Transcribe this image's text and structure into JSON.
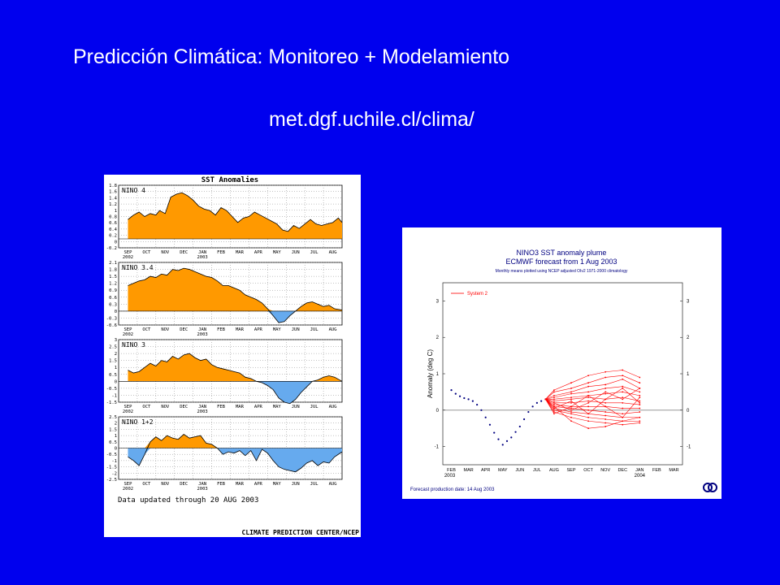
{
  "slide": {
    "title": "Predicción Climática: Monitoreo + Modelamiento",
    "url": "met.dgf.uchile.cl/clima/"
  },
  "colors": {
    "background": "#0000ee",
    "positive_fill": "#ff9900",
    "negative_fill": "#66aaee",
    "plume": "#ff0000",
    "observed": "#000080"
  },
  "left_figure": {
    "title": "SST Anomalies",
    "months": [
      "SEP",
      "OCT",
      "NOV",
      "DEC",
      "JAN",
      "FEB",
      "MAR",
      "APR",
      "MAY",
      "JUN",
      "JUL",
      "AUG"
    ],
    "year_start": "2002",
    "year_mid": "2003",
    "footer_note": "Data updated through 20 AUG 2003",
    "credit": "CLIMATE PREDICTION CENTER/NCEP"
  },
  "right_figure": {
    "title": "NINO3 SST anomaly plume",
    "subtitle": "ECMWF forecast from  1 Aug 2003",
    "note": "Monthly means plotted using NCEP adjusted OIv2 1971-2000 climatology",
    "ylabel": "Anomaly (deg C)",
    "legend": "System 2",
    "months": [
      "FEB",
      "MAR",
      "APR",
      "MAY",
      "JUN",
      "JUL",
      "AUG",
      "SEP",
      "OCT",
      "NOV",
      "DEC",
      "JAN",
      "FEB",
      "MAR"
    ],
    "year_start": "2003",
    "year_end": "2004",
    "production_date": "Forecast production date: 14 Aug 2003",
    "logo": "ecmwf-logo"
  },
  "chart_data": [
    {
      "type": "area",
      "name": "NINO 4",
      "x": [
        0,
        0.3,
        0.6,
        0.9,
        1.2,
        1.5,
        1.7,
        2.0,
        2.3,
        2.6,
        2.9,
        3.2,
        3.5,
        3.8,
        4.1,
        4.4,
        4.7,
        5.0,
        5.3,
        5.6,
        5.9,
        6.2,
        6.5,
        6.8,
        7.1,
        7.4,
        7.7,
        8.0,
        8.3,
        8.6,
        8.9,
        9.2,
        9.5,
        9.8,
        10.1,
        10.4,
        10.7,
        11.0,
        11.3,
        11.5
      ],
      "values": [
        0.65,
        0.8,
        0.9,
        0.75,
        0.85,
        0.8,
        0.95,
        0.85,
        1.4,
        1.5,
        1.55,
        1.45,
        1.3,
        1.1,
        1.0,
        0.95,
        0.8,
        1.05,
        0.95,
        0.75,
        0.55,
        0.7,
        0.75,
        0.9,
        0.8,
        0.7,
        0.6,
        0.5,
        0.3,
        0.25,
        0.45,
        0.35,
        0.5,
        0.65,
        0.5,
        0.45,
        0.5,
        0.55,
        0.7,
        0.55
      ],
      "ylim": [
        -0.3,
        1.8
      ],
      "yticks": [
        "1.8",
        "1.6",
        "1.4",
        "1.2",
        "1",
        "0.8",
        "0.6",
        "0.4",
        "0.2",
        "0",
        "-0.2"
      ]
    },
    {
      "type": "area",
      "name": "NINO 3.4",
      "x": [
        0,
        0.3,
        0.6,
        0.9,
        1.2,
        1.5,
        1.8,
        2.1,
        2.4,
        2.7,
        3.0,
        3.3,
        3.6,
        3.9,
        4.2,
        4.5,
        4.8,
        5.1,
        5.4,
        5.7,
        6.0,
        6.3,
        6.6,
        6.9,
        7.2,
        7.5,
        7.8,
        8.1,
        8.4,
        8.7,
        9.0,
        9.3,
        9.6,
        9.9,
        10.2,
        10.5,
        10.8,
        11.1,
        11.5
      ],
      "values": [
        1.1,
        1.2,
        1.3,
        1.35,
        1.5,
        1.45,
        1.6,
        1.55,
        1.8,
        1.75,
        1.85,
        1.8,
        1.7,
        1.6,
        1.5,
        1.45,
        1.3,
        1.1,
        1.1,
        1.0,
        0.9,
        0.7,
        0.6,
        0.5,
        0.35,
        0.1,
        -0.2,
        -0.5,
        -0.45,
        -0.2,
        0.0,
        0.2,
        0.35,
        0.4,
        0.3,
        0.2,
        0.25,
        0.1,
        0.05
      ],
      "ylim": [
        -0.6,
        2.1
      ],
      "yticks": [
        "2.1",
        "1.8",
        "1.5",
        "1.2",
        "0.9",
        "0.6",
        "0.3",
        "0",
        "-0.3",
        "-0.6"
      ]
    },
    {
      "type": "area",
      "name": "NINO 3",
      "x": [
        0,
        0.3,
        0.6,
        0.9,
        1.2,
        1.5,
        1.8,
        2.1,
        2.4,
        2.7,
        3.0,
        3.3,
        3.6,
        3.9,
        4.2,
        4.5,
        4.8,
        5.1,
        5.4,
        5.7,
        6.0,
        6.3,
        6.6,
        6.9,
        7.2,
        7.5,
        7.8,
        8.1,
        8.4,
        8.7,
        9.0,
        9.3,
        9.6,
        9.9,
        10.2,
        10.5,
        10.8,
        11.1,
        11.5
      ],
      "values": [
        0.8,
        0.6,
        0.7,
        1.0,
        1.3,
        1.1,
        1.5,
        1.4,
        1.8,
        1.6,
        1.9,
        2.0,
        1.7,
        1.5,
        1.6,
        1.2,
        1.0,
        0.9,
        0.8,
        0.7,
        0.6,
        0.3,
        0.2,
        0.0,
        -0.1,
        -0.3,
        -0.6,
        -1.2,
        -1.5,
        -1.6,
        -1.3,
        -0.8,
        -0.4,
        0.0,
        0.1,
        0.3,
        0.4,
        0.3,
        0.0
      ],
      "ylim": [
        -1.5,
        3.0
      ],
      "yticks": [
        "3",
        "2.5",
        "2",
        "1.5",
        "1",
        "0.5",
        "0",
        "-0.5",
        "-1",
        "-1.5"
      ]
    },
    {
      "type": "area",
      "name": "NINO 1+2",
      "x": [
        0,
        0.3,
        0.6,
        0.9,
        1.2,
        1.5,
        1.8,
        2.1,
        2.4,
        2.7,
        3.0,
        3.3,
        3.6,
        3.9,
        4.2,
        4.5,
        4.8,
        5.1,
        5.4,
        5.7,
        6.0,
        6.3,
        6.6,
        6.9,
        7.2,
        7.5,
        7.8,
        8.1,
        8.4,
        8.7,
        9.0,
        9.3,
        9.6,
        9.9,
        10.2,
        10.5,
        10.8,
        11.1,
        11.5
      ],
      "values": [
        -0.7,
        -1.0,
        -1.4,
        -0.5,
        0.5,
        0.9,
        0.6,
        1.0,
        0.8,
        0.7,
        1.1,
        0.8,
        0.9,
        1.0,
        0.4,
        0.3,
        0.0,
        -0.5,
        -0.3,
        -0.4,
        -0.2,
        -0.6,
        -0.2,
        -1.0,
        -0.1,
        -0.4,
        -1.0,
        -1.5,
        -1.7,
        -1.8,
        -1.9,
        -1.6,
        -1.2,
        -1.0,
        -1.4,
        -1.1,
        -1.2,
        -0.7,
        -0.3
      ],
      "ylim": [
        -2.5,
        2.5
      ],
      "yticks": [
        "2.5",
        "2",
        "1.5",
        "1",
        "0.5",
        "0",
        "-0.5",
        "-1",
        "-1.5",
        "-2",
        "-2.5"
      ]
    },
    {
      "type": "line",
      "name": "NINO3 SST anomaly plume",
      "x_months": [
        "FEB",
        "MAR",
        "APR",
        "MAY",
        "JUN",
        "JUL",
        "AUG",
        "SEP",
        "OCT",
        "NOV",
        "DEC",
        "JAN",
        "FEB",
        "MAR"
      ],
      "ylim": [
        -1.5,
        3.5
      ],
      "yticks": [
        3,
        2,
        1,
        0,
        -1
      ],
      "observed": {
        "x": [
          0,
          0.25,
          0.5,
          0.75,
          1.0,
          1.25,
          1.5,
          1.75,
          2.0,
          2.25,
          2.5,
          2.75,
          3.0,
          3.25,
          3.5,
          3.75,
          4.0,
          4.25,
          4.5,
          4.75,
          5.0,
          5.25,
          5.5
        ],
        "y": [
          0.55,
          0.45,
          0.38,
          0.33,
          0.3,
          0.25,
          0.15,
          0.0,
          -0.2,
          -0.4,
          -0.62,
          -0.8,
          -0.95,
          -0.85,
          -0.75,
          -0.6,
          -0.45,
          -0.25,
          -0.05,
          0.1,
          0.2,
          0.25,
          0.3
        ]
      },
      "series": [
        {
          "name": "System 2",
          "values": [
            0.3,
            0.55,
            0.75,
            0.95,
            1.05,
            1.1,
            0.9
          ]
        },
        {
          "values": [
            0.3,
            0.5,
            0.6,
            0.75,
            0.9,
            0.95,
            0.75
          ]
        },
        {
          "values": [
            0.3,
            0.4,
            0.5,
            0.65,
            0.7,
            0.85,
            0.6
          ]
        },
        {
          "values": [
            0.3,
            0.35,
            0.45,
            0.5,
            0.6,
            0.65,
            0.5
          ]
        },
        {
          "values": [
            0.3,
            0.3,
            0.35,
            0.4,
            0.45,
            0.5,
            0.4
          ]
        },
        {
          "values": [
            0.3,
            0.25,
            0.3,
            0.35,
            0.3,
            0.35,
            0.25
          ]
        },
        {
          "values": [
            0.3,
            0.2,
            0.2,
            0.25,
            0.2,
            0.2,
            0.15
          ]
        },
        {
          "values": [
            0.3,
            0.15,
            0.1,
            0.1,
            0.1,
            0.05,
            0.05
          ]
        },
        {
          "values": [
            0.3,
            0.1,
            0.05,
            0.0,
            -0.05,
            -0.1,
            -0.05
          ]
        },
        {
          "values": [
            0.3,
            0.05,
            -0.05,
            -0.1,
            -0.15,
            -0.2,
            -0.2
          ]
        },
        {
          "values": [
            0.3,
            0.0,
            -0.1,
            -0.2,
            -0.25,
            -0.3,
            -0.3
          ]
        },
        {
          "values": [
            0.3,
            -0.05,
            -0.2,
            -0.3,
            -0.35,
            -0.4,
            -0.35
          ]
        },
        {
          "values": [
            0.3,
            0.1,
            -0.3,
            -0.5,
            -0.45,
            -0.3,
            -0.2
          ]
        },
        {
          "values": [
            0.3,
            0.2,
            0.0,
            0.2,
            0.5,
            0.3,
            0.6
          ]
        },
        {
          "values": [
            0.3,
            0.05,
            0.25,
            -0.1,
            0.3,
            0.6,
            0.2
          ]
        },
        {
          "values": [
            0.3,
            -0.1,
            0.1,
            0.4,
            0.1,
            -0.2,
            0.35
          ]
        }
      ],
      "forecast_x": [
        5.5,
        6.0,
        7.0,
        8.0,
        9.0,
        10.0,
        11.0
      ]
    }
  ]
}
